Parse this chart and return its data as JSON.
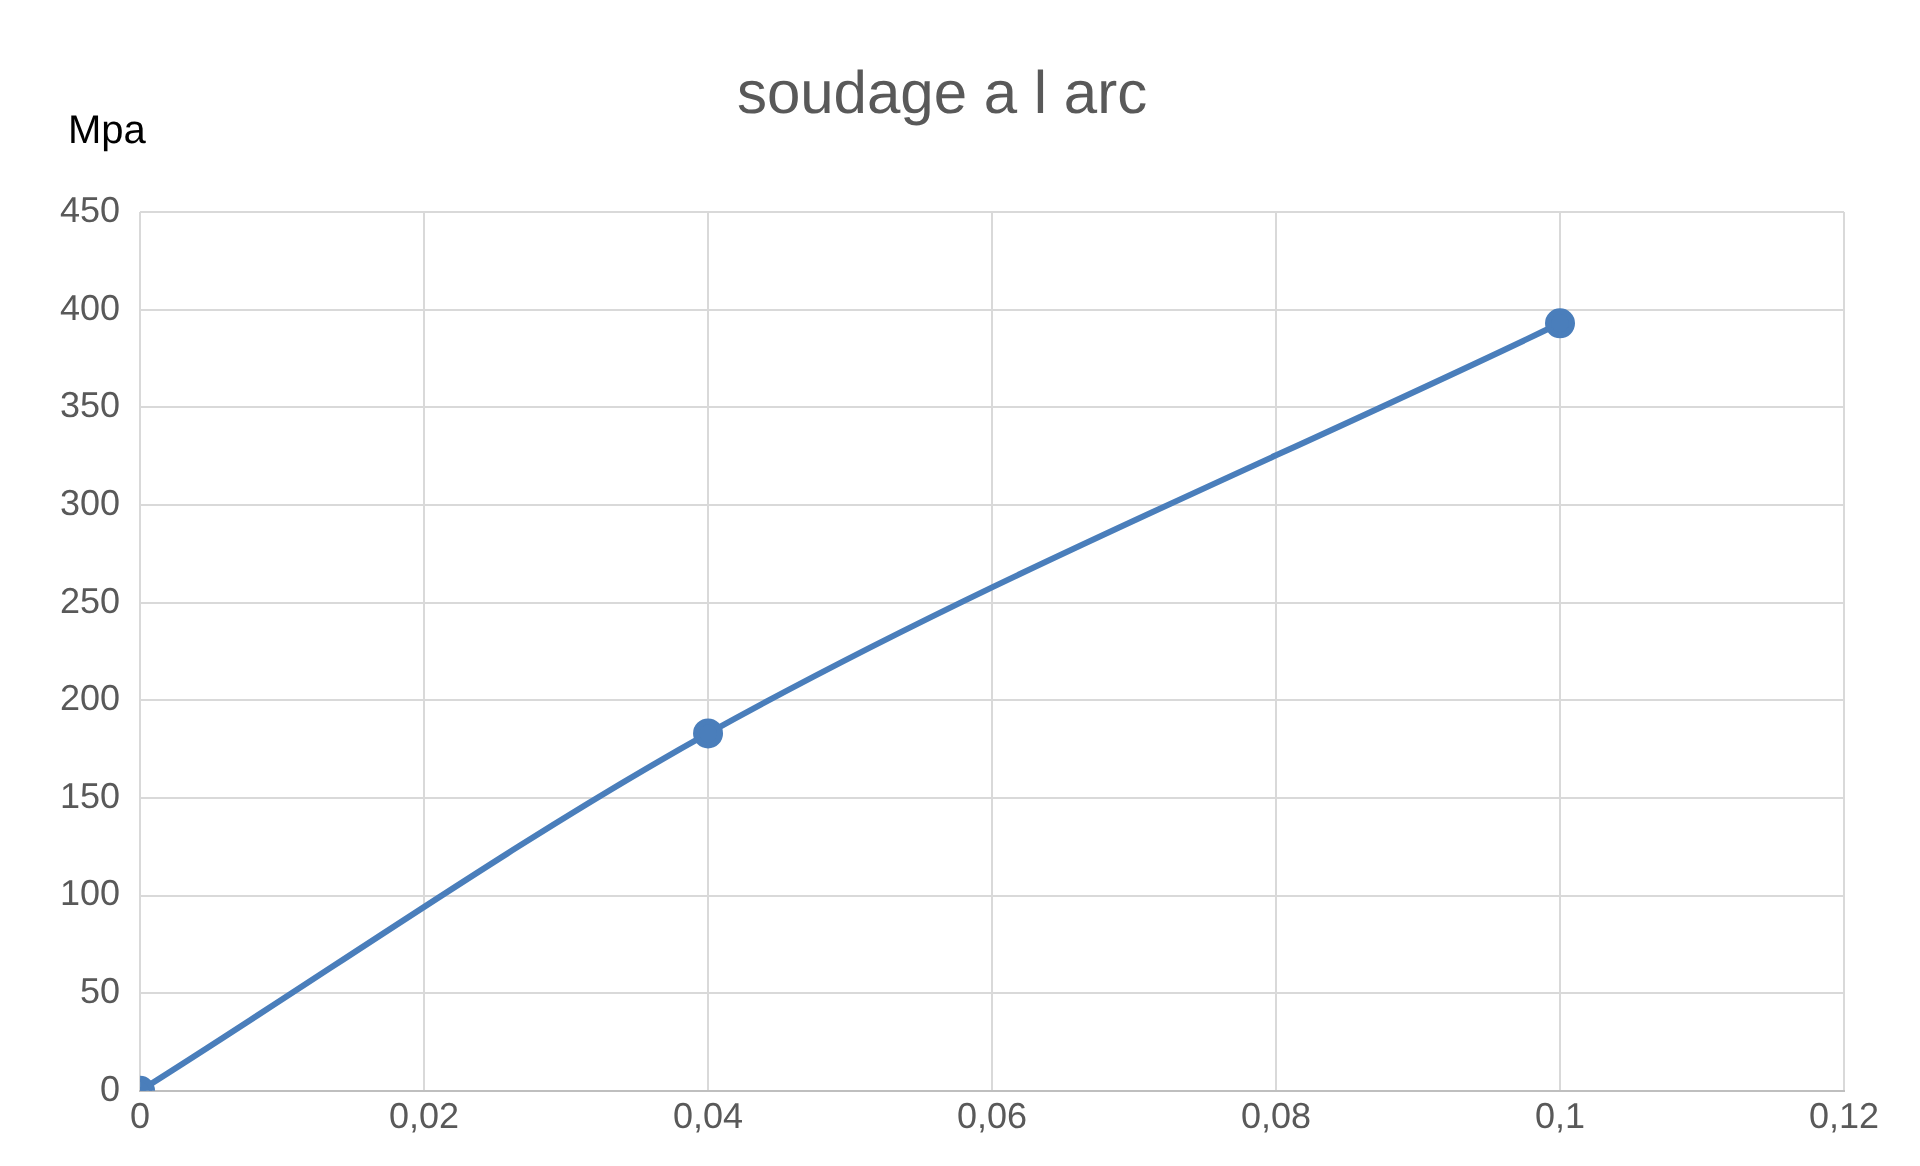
{
  "chart_data": {
    "type": "line",
    "title": "soudage a l arc",
    "ylabel": "Mpa",
    "x": [
      0,
      0.04,
      0.1
    ],
    "series": [
      {
        "color": "#4a7ebb",
        "values": [
          0,
          183,
          393
        ]
      }
    ],
    "xlim": [
      0,
      0.12
    ],
    "xticks": [
      0,
      {
        "value": 0.02,
        "label": "0,02"
      },
      {
        "value": 0.04,
        "label": "0,04"
      },
      {
        "value": 0.06,
        "label": "0,06"
      },
      {
        "value": 0.08,
        "label": "0,08"
      },
      {
        "value": 0.1,
        "label": "0,1"
      },
      {
        "value": 0.12,
        "label": "0,12"
      }
    ],
    "ylim": [
      0,
      450
    ],
    "yticks": [
      0,
      50,
      100,
      150,
      200,
      250,
      300,
      350,
      400,
      450
    ],
    "grid": true,
    "legend": false,
    "marker": "circle",
    "line_style": "solid"
  }
}
